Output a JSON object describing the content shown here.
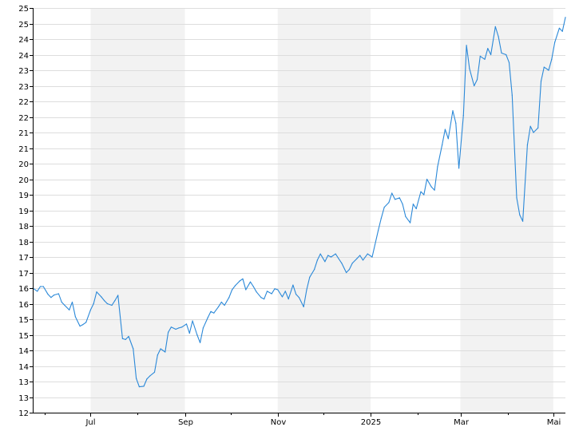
{
  "chart_data": {
    "type": "line",
    "title": "",
    "xlabel": "",
    "ylabel": "",
    "ylim": [
      12,
      25
    ],
    "y_ticks": [
      12,
      12.5,
      13,
      13.5,
      14,
      14.5,
      15,
      15.5,
      16,
      16.5,
      17,
      17.5,
      18,
      18.5,
      19,
      19.5,
      20,
      20.5,
      21,
      21.5,
      22,
      22.5,
      23,
      23.5,
      24,
      24.5,
      25
    ],
    "y_tick_labels": [
      "12",
      "13",
      "13",
      "14",
      "14",
      "15",
      "15",
      "16",
      "16",
      "17",
      "17",
      "18",
      "18",
      "19",
      "19",
      "20",
      "20",
      "21",
      "21",
      "22",
      "22",
      "23",
      "23",
      "24",
      "24",
      "25",
      "25"
    ],
    "x_range": [
      "2024-05-24",
      "2025-05-09"
    ],
    "x_ticks": [
      {
        "date": "2024-07-01",
        "label": "Jul"
      },
      {
        "date": "2024-09-01",
        "label": "Sep"
      },
      {
        "date": "2024-11-01",
        "label": "Nov"
      },
      {
        "date": "2025-01-01",
        "label": "2025"
      },
      {
        "date": "2025-03-01",
        "label": "Mar"
      },
      {
        "date": "2025-05-01",
        "label": "Mai"
      }
    ],
    "minor_x_ticks": [
      "2024-06-01",
      "2024-08-01",
      "2024-10-01",
      "2024-12-01",
      "2025-02-01",
      "2025-04-01"
    ],
    "shaded_bands": [
      [
        "2024-07-01",
        "2024-09-01"
      ],
      [
        "2024-11-01",
        "2025-01-01"
      ],
      [
        "2025-03-01",
        "2025-05-01"
      ]
    ],
    "grid": true,
    "series_color": "#2a88d8",
    "band_color": "#f2f2f2",
    "grid_color": "#dddddd",
    "series": [
      {
        "values": [
          [
            "2024-05-24",
            16.0
          ],
          [
            "2024-05-27",
            15.9
          ],
          [
            "2024-05-29",
            16.05
          ],
          [
            "2024-05-31",
            16.05
          ],
          [
            "2024-06-03",
            15.8
          ],
          [
            "2024-06-05",
            15.7
          ],
          [
            "2024-06-07",
            15.78
          ],
          [
            "2024-06-10",
            15.82
          ],
          [
            "2024-06-12",
            15.55
          ],
          [
            "2024-06-14",
            15.45
          ],
          [
            "2024-06-17",
            15.3
          ],
          [
            "2024-06-19",
            15.55
          ],
          [
            "2024-06-21",
            15.08
          ],
          [
            "2024-06-24",
            14.78
          ],
          [
            "2024-06-26",
            14.83
          ],
          [
            "2024-06-28",
            14.9
          ],
          [
            "2024-07-01",
            15.3
          ],
          [
            "2024-07-03",
            15.5
          ],
          [
            "2024-07-05",
            15.88
          ],
          [
            "2024-07-08",
            15.72
          ],
          [
            "2024-07-10",
            15.6
          ],
          [
            "2024-07-12",
            15.5
          ],
          [
            "2024-07-15",
            15.45
          ],
          [
            "2024-07-17",
            15.6
          ],
          [
            "2024-07-19",
            15.77
          ],
          [
            "2024-07-22",
            14.38
          ],
          [
            "2024-07-24",
            14.35
          ],
          [
            "2024-07-26",
            14.45
          ],
          [
            "2024-07-29",
            14.05
          ],
          [
            "2024-07-31",
            13.1
          ],
          [
            "2024-08-02",
            12.83
          ],
          [
            "2024-08-05",
            12.85
          ],
          [
            "2024-08-07",
            13.08
          ],
          [
            "2024-08-09",
            13.18
          ],
          [
            "2024-08-12",
            13.3
          ],
          [
            "2024-08-14",
            13.85
          ],
          [
            "2024-08-16",
            14.05
          ],
          [
            "2024-08-19",
            13.95
          ],
          [
            "2024-08-21",
            14.58
          ],
          [
            "2024-08-23",
            14.75
          ],
          [
            "2024-08-26",
            14.68
          ],
          [
            "2024-08-28",
            14.72
          ],
          [
            "2024-08-30",
            14.75
          ],
          [
            "2024-09-02",
            14.85
          ],
          [
            "2024-09-04",
            14.55
          ],
          [
            "2024-09-06",
            14.95
          ],
          [
            "2024-09-09",
            14.5
          ],
          [
            "2024-09-11",
            14.25
          ],
          [
            "2024-09-13",
            14.72
          ],
          [
            "2024-09-16",
            15.05
          ],
          [
            "2024-09-18",
            15.25
          ],
          [
            "2024-09-20",
            15.2
          ],
          [
            "2024-09-23",
            15.4
          ],
          [
            "2024-09-25",
            15.55
          ],
          [
            "2024-09-27",
            15.45
          ],
          [
            "2024-09-30",
            15.7
          ],
          [
            "2024-10-02",
            15.95
          ],
          [
            "2024-10-04",
            16.08
          ],
          [
            "2024-10-07",
            16.23
          ],
          [
            "2024-10-09",
            16.3
          ],
          [
            "2024-10-11",
            15.95
          ],
          [
            "2024-10-14",
            16.2
          ],
          [
            "2024-10-16",
            16.05
          ],
          [
            "2024-10-18",
            15.88
          ],
          [
            "2024-10-21",
            15.7
          ],
          [
            "2024-10-23",
            15.65
          ],
          [
            "2024-10-25",
            15.9
          ],
          [
            "2024-10-28",
            15.82
          ],
          [
            "2024-10-30",
            15.98
          ],
          [
            "2024-11-01",
            15.95
          ],
          [
            "2024-11-04",
            15.72
          ],
          [
            "2024-11-06",
            15.9
          ],
          [
            "2024-11-08",
            15.65
          ],
          [
            "2024-11-11",
            16.1
          ],
          [
            "2024-11-13",
            15.8
          ],
          [
            "2024-11-15",
            15.7
          ],
          [
            "2024-11-18",
            15.4
          ],
          [
            "2024-11-20",
            15.95
          ],
          [
            "2024-11-22",
            16.35
          ],
          [
            "2024-11-25",
            16.6
          ],
          [
            "2024-11-27",
            16.9
          ],
          [
            "2024-11-29",
            17.1
          ],
          [
            "2024-12-02",
            16.85
          ],
          [
            "2024-12-04",
            17.05
          ],
          [
            "2024-12-06",
            17.0
          ],
          [
            "2024-12-09",
            17.1
          ],
          [
            "2024-12-11",
            16.95
          ],
          [
            "2024-12-13",
            16.8
          ],
          [
            "2024-12-16",
            16.5
          ],
          [
            "2024-12-18",
            16.6
          ],
          [
            "2024-12-20",
            16.8
          ],
          [
            "2024-12-23",
            16.95
          ],
          [
            "2024-12-25",
            17.05
          ],
          [
            "2024-12-27",
            16.9
          ],
          [
            "2024-12-30",
            17.1
          ],
          [
            "2025-01-02",
            17.0
          ],
          [
            "2025-01-06",
            17.85
          ],
          [
            "2025-01-08",
            18.25
          ],
          [
            "2025-01-10",
            18.6
          ],
          [
            "2025-01-13",
            18.75
          ],
          [
            "2025-01-15",
            19.05
          ],
          [
            "2025-01-17",
            18.85
          ],
          [
            "2025-01-20",
            18.9
          ],
          [
            "2025-01-22",
            18.7
          ],
          [
            "2025-01-24",
            18.3
          ],
          [
            "2025-01-27",
            18.1
          ],
          [
            "2025-01-29",
            18.7
          ],
          [
            "2025-01-31",
            18.55
          ],
          [
            "2025-02-03",
            19.1
          ],
          [
            "2025-02-05",
            19.0
          ],
          [
            "2025-02-07",
            19.5
          ],
          [
            "2025-02-10",
            19.25
          ],
          [
            "2025-02-12",
            19.15
          ],
          [
            "2025-02-14",
            19.9
          ],
          [
            "2025-02-17",
            20.6
          ],
          [
            "2025-02-19",
            21.1
          ],
          [
            "2025-02-21",
            20.8
          ],
          [
            "2025-02-24",
            21.7
          ],
          [
            "2025-02-26",
            21.3
          ],
          [
            "2025-02-28",
            19.85
          ],
          [
            "2025-03-03",
            21.55
          ],
          [
            "2025-03-05",
            23.8
          ],
          [
            "2025-03-07",
            23.05
          ],
          [
            "2025-03-10",
            22.5
          ],
          [
            "2025-03-12",
            22.7
          ],
          [
            "2025-03-14",
            23.45
          ],
          [
            "2025-03-17",
            23.35
          ],
          [
            "2025-03-19",
            23.7
          ],
          [
            "2025-03-21",
            23.5
          ],
          [
            "2025-03-24",
            24.4
          ],
          [
            "2025-03-26",
            24.08
          ],
          [
            "2025-03-28",
            23.55
          ],
          [
            "2025-03-31",
            23.5
          ],
          [
            "2025-04-02",
            23.25
          ],
          [
            "2025-04-04",
            22.2
          ],
          [
            "2025-04-07",
            18.9
          ],
          [
            "2025-04-09",
            18.35
          ],
          [
            "2025-04-11",
            18.15
          ],
          [
            "2025-04-14",
            20.6
          ],
          [
            "2025-04-16",
            21.2
          ],
          [
            "2025-04-18",
            21.0
          ],
          [
            "2025-04-21",
            21.15
          ],
          [
            "2025-04-23",
            22.65
          ],
          [
            "2025-04-25",
            23.1
          ],
          [
            "2025-04-28",
            23.0
          ],
          [
            "2025-04-30",
            23.35
          ],
          [
            "2025-05-02",
            23.9
          ],
          [
            "2025-05-05",
            24.35
          ],
          [
            "2025-05-07",
            24.25
          ],
          [
            "2025-05-09",
            24.7
          ]
        ]
      }
    ]
  }
}
